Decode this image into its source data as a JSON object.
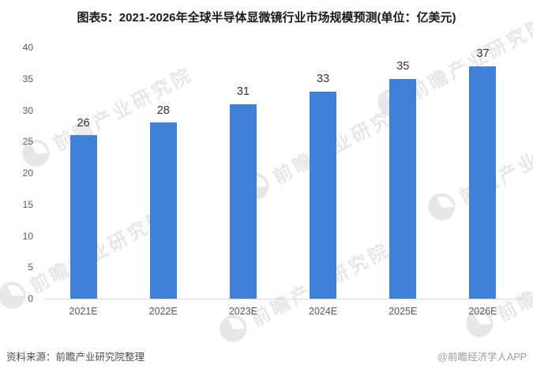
{
  "title": "图表5：2021-2026年全球半导体显微镜行业市场规模预测(单位：亿美元)",
  "chart_data": {
    "type": "bar",
    "title": "图表5：2021-2026年全球半导体显微镜行业市场规模预测(单位：亿美元)",
    "categories": [
      "2021E",
      "2022E",
      "2023E",
      "2024E",
      "2025E",
      "2026E"
    ],
    "values": [
      26,
      28,
      31,
      33,
      35,
      37
    ],
    "xlabel": "",
    "ylabel": "",
    "ylim": [
      0,
      40
    ],
    "yticks": [
      0,
      5,
      10,
      15,
      20,
      25,
      30,
      35,
      40
    ],
    "grid": false,
    "legend": "none",
    "bar_color": "#4080d6",
    "axis_line_color": "#d9d9d9",
    "tick_label_color": "#595959",
    "value_label_color": "#333333"
  },
  "footer": {
    "source": "资料来源：前瞻产业研究院整理",
    "credit": "@前瞻经济学人APP"
  },
  "watermark": {
    "text": "前瞻产业研究院",
    "logo": "qianzhan-circle-logo",
    "color": "#d4d4d4"
  }
}
